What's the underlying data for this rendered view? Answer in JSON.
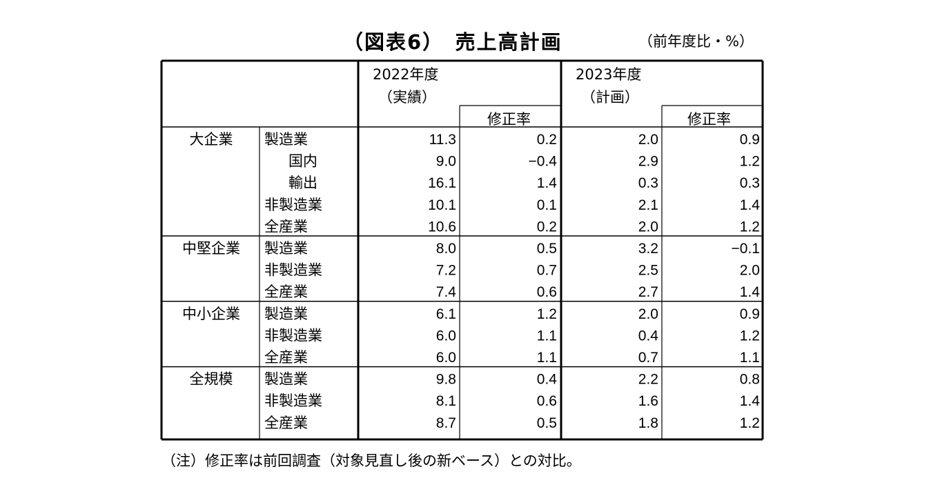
{
  "title": "（図表6）　売上高計画",
  "unit": "（前年度比・%）",
  "note": "（注）修正率は前回調査（対象見直し後の新ベース）との対比。",
  "headers": {
    "year1_line1": "2022年度",
    "year1_line2": "（実績）",
    "year1_rev": "修正率",
    "year2_line1": "2023年度",
    "year2_line2": "（計画）",
    "year2_rev": "修正率"
  },
  "groups": [
    {
      "name": "大企業",
      "rows": [
        {
          "label": "製造業",
          "indent": false,
          "values": [
            "11.3",
            "0.2",
            "2.0",
            "0.9"
          ]
        },
        {
          "label": "国内",
          "indent": true,
          "values": [
            "9.0",
            "−0.4",
            "2.9",
            "1.2"
          ]
        },
        {
          "label": "輸出",
          "indent": true,
          "values": [
            "16.1",
            "1.4",
            "0.3",
            "0.3"
          ]
        },
        {
          "label": "非製造業",
          "indent": false,
          "values": [
            "10.1",
            "0.1",
            "2.1",
            "1.4"
          ]
        },
        {
          "label": "全産業",
          "indent": false,
          "values": [
            "10.6",
            "0.2",
            "2.0",
            "1.2"
          ]
        }
      ]
    },
    {
      "name": "中堅企業",
      "rows": [
        {
          "label": "製造業",
          "indent": false,
          "values": [
            "8.0",
            "0.5",
            "3.2",
            "−0.1"
          ]
        },
        {
          "label": "非製造業",
          "indent": false,
          "values": [
            "7.2",
            "0.7",
            "2.5",
            "2.0"
          ]
        },
        {
          "label": "全産業",
          "indent": false,
          "values": [
            "7.4",
            "0.6",
            "2.7",
            "1.4"
          ]
        }
      ]
    },
    {
      "name": "中小企業",
      "rows": [
        {
          "label": "製造業",
          "indent": false,
          "values": [
            "6.1",
            "1.2",
            "2.0",
            "0.9"
          ]
        },
        {
          "label": "非製造業",
          "indent": false,
          "values": [
            "6.0",
            "1.1",
            "0.4",
            "1.2"
          ]
        },
        {
          "label": "全産業",
          "indent": false,
          "values": [
            "6.0",
            "1.1",
            "0.7",
            "1.1"
          ]
        }
      ]
    },
    {
      "name": "全規模",
      "rows": [
        {
          "label": "製造業",
          "indent": false,
          "values": [
            "9.8",
            "0.4",
            "2.2",
            "0.8"
          ]
        },
        {
          "label": "非製造業",
          "indent": false,
          "values": [
            "8.1",
            "0.6",
            "1.6",
            "1.4"
          ]
        },
        {
          "label": "全産業",
          "indent": false,
          "values": [
            "8.7",
            "0.5",
            "1.8",
            "1.2"
          ]
        }
      ]
    }
  ]
}
